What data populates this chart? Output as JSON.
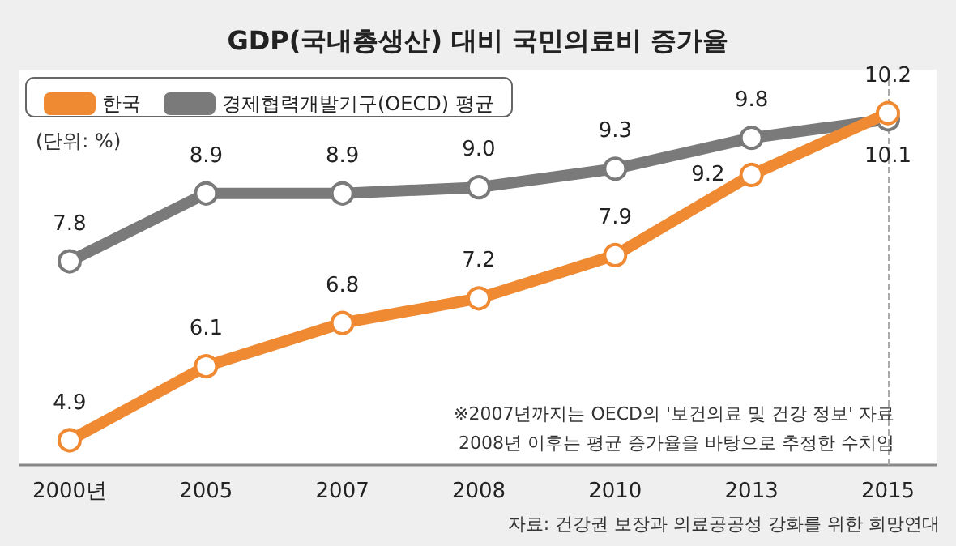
{
  "chart_data": {
    "type": "line",
    "title": "GDP(국내총생산) 대비 국민의료비 증가율",
    "categories": [
      "2000년",
      "2005",
      "2007",
      "2008",
      "2010",
      "2013",
      "2015"
    ],
    "series": [
      {
        "name": "한국",
        "color": "#f08a32",
        "values": [
          4.9,
          6.1,
          6.8,
          7.2,
          7.9,
          9.2,
          10.2
        ],
        "value_labels": [
          "4.9",
          "6.1",
          "6.8",
          "7.2",
          "7.9",
          "9.2",
          "10.2"
        ]
      },
      {
        "name": "경제협력개발기구(OECD) 평균",
        "color": "#7a7a7a",
        "values": [
          7.8,
          8.9,
          8.9,
          9.0,
          9.3,
          9.8,
          10.1
        ],
        "value_labels": [
          "7.8",
          "8.9",
          "8.9",
          "9.0",
          "9.3",
          "9.8",
          "10.1"
        ]
      }
    ],
    "ylim": [
      4.5,
      10.8
    ],
    "tick_labels": "x",
    "marker": "circle",
    "line_style": "solid",
    "grid": false,
    "legend": "top left",
    "ref_lines": [
      {
        "axis": "x",
        "value": "2015",
        "label": null,
        "color": "#aaaaaa",
        "line_style": "dashed"
      }
    ],
    "annotations": [
      "(단위: %)",
      "※2007년까지는 OECD의 '보건의료 및 건강 정보' 자료",
      "2008년 이후는 평균 증가율을 바탕으로 추정한 수치임",
      "자료: 건강권 보장과 의료공공성 강화를 위한 희망연대"
    ]
  }
}
